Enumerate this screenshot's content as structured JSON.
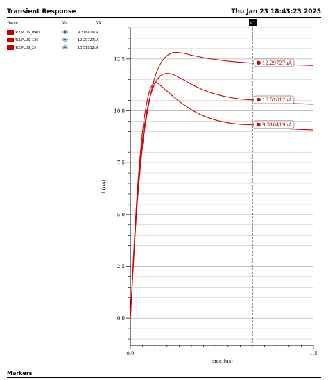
{
  "header": {
    "title": "Transient Response",
    "datetime": "Thu Jan 23 18:43:23 2025"
  },
  "legend": {
    "col_name": "Name",
    "col_vis": "Vis",
    "col_value": "V1",
    "items": [
      {
        "name": "/R2/PLUS_m40",
        "value": "9.316419uA"
      },
      {
        "name": "/R2/PLUS_125",
        "value": "12.29727uA"
      },
      {
        "name": "/R2/PLUS_25",
        "value": "10.51812uA"
      }
    ]
  },
  "footer": {
    "markers_title": "Markers"
  },
  "chart_data": {
    "type": "line",
    "xlabel": "time (us)",
    "ylabel": "I (uA)",
    "xlim": [
      0,
      1.5
    ],
    "ylim": [
      -1.3,
      14.0
    ],
    "x_ticks": [
      0.0,
      1.5
    ],
    "x_tick_labels": [
      "0.0",
      "1.5"
    ],
    "y_ticks": [
      0.0,
      2.5,
      5.0,
      7.5,
      10.0,
      12.5
    ],
    "y_tick_labels": [
      "0.0",
      "2.5",
      "5.0",
      "7.5",
      "10.0",
      "12.5"
    ],
    "grid": true,
    "line_color": "#cc0000",
    "cursor": {
      "name": "V1",
      "x": 1.0
    },
    "series": [
      {
        "name": "/R2/PLUS_125",
        "x": [
          0,
          0.05,
          0.1,
          0.15,
          0.2,
          0.25,
          0.3,
          0.35,
          0.4,
          0.45,
          0.5,
          0.6,
          0.7,
          0.8,
          0.9,
          1.0,
          1.1,
          1.2,
          1.3,
          1.4,
          1.5
        ],
        "y": [
          0,
          5.0,
          8.3,
          10.3,
          11.6,
          12.3,
          12.65,
          12.8,
          12.8,
          12.75,
          12.68,
          12.56,
          12.47,
          12.39,
          12.34,
          12.3,
          12.27,
          12.24,
          12.22,
          12.2,
          12.18
        ]
      },
      {
        "name": "/R2/PLUS_25",
        "x": [
          0,
          0.05,
          0.1,
          0.15,
          0.2,
          0.25,
          0.3,
          0.35,
          0.4,
          0.45,
          0.5,
          0.6,
          0.7,
          0.8,
          0.9,
          1.0,
          1.1,
          1.2,
          1.3,
          1.4,
          1.5
        ],
        "y": [
          0,
          5.2,
          8.6,
          10.4,
          11.3,
          11.7,
          11.8,
          11.75,
          11.6,
          11.45,
          11.28,
          11.0,
          10.8,
          10.66,
          10.57,
          10.52,
          10.45,
          10.4,
          10.36,
          10.34,
          10.32
        ]
      },
      {
        "name": "/R2/PLUS_m40",
        "x": [
          0,
          0.05,
          0.1,
          0.15,
          0.2,
          0.25,
          0.3,
          0.35,
          0.4,
          0.45,
          0.5,
          0.6,
          0.7,
          0.8,
          0.9,
          1.0,
          1.1,
          1.2,
          1.3,
          1.4,
          1.5
        ],
        "y": [
          0,
          5.5,
          9.0,
          10.8,
          11.35,
          11.2,
          10.95,
          10.7,
          10.45,
          10.25,
          10.05,
          9.75,
          9.55,
          9.42,
          9.35,
          9.32,
          9.25,
          9.18,
          9.13,
          9.1,
          9.08
        ]
      }
    ],
    "markers": [
      {
        "series": "/R2/PLUS_125",
        "x": 1.0,
        "y": 12.29727,
        "label": "12.29727uA"
      },
      {
        "series": "/R2/PLUS_25",
        "x": 1.0,
        "y": 10.51812,
        "label": "10.51812uA"
      },
      {
        "series": "/R2/PLUS_m40",
        "x": 1.0,
        "y": 9.316419,
        "label": "9.316419uA"
      }
    ]
  }
}
